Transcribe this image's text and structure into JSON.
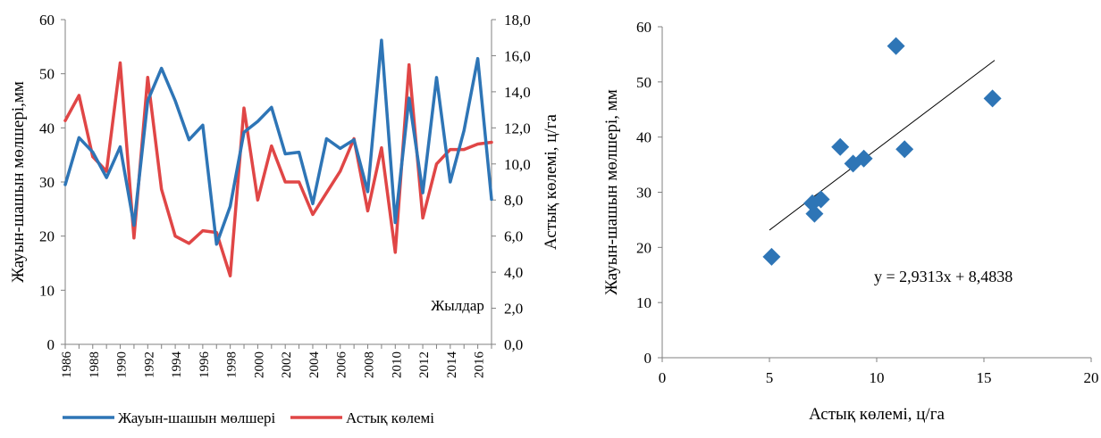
{
  "chart_data": [
    {
      "type": "line",
      "title": "",
      "xlabel": "Жылдар",
      "ylabel": "Жауын-шашын мөлшері,мм",
      "y2label": "Астық көлемі, ц/га",
      "x": [
        1986,
        1987,
        1988,
        1989,
        1990,
        1991,
        1992,
        1993,
        1994,
        1995,
        1996,
        1997,
        1998,
        1999,
        2000,
        2001,
        2002,
        2003,
        2004,
        2005,
        2006,
        2007,
        2008,
        2009,
        2010,
        2011,
        2012,
        2013,
        2014,
        2015,
        2016,
        2017
      ],
      "x_tick_labels": [
        "1986",
        "1988",
        "1990",
        "1992",
        "1994",
        "1996",
        "1998",
        "2000",
        "2002",
        "2004",
        "2006",
        "2008",
        "2010",
        "2012",
        "2014",
        "2016"
      ],
      "ylim": [
        0,
        60
      ],
      "y_ticks": [
        "0",
        "10",
        "20",
        "30",
        "40",
        "50",
        "60"
      ],
      "y2lim": [
        0,
        18
      ],
      "y2_ticks": [
        "0,0",
        "2,0",
        "4,0",
        "6,0",
        "8,0",
        "10,0",
        "12,0",
        "14,0",
        "16,0",
        "18,0"
      ],
      "grid": false,
      "legend_position": "bottom",
      "series": [
        {
          "name": "Жауын-шашын мөлшері",
          "axis": "left",
          "color": "#2E75B6",
          "values": [
            29.5,
            38.2,
            35.5,
            30.8,
            36.5,
            22.0,
            45.0,
            51.0,
            45.0,
            37.8,
            40.5,
            18.5,
            25.5,
            39.2,
            41.2,
            43.8,
            35.2,
            35.5,
            26.0,
            38.0,
            36.2,
            37.8,
            28.2,
            56.2,
            22.5,
            45.5,
            28.0,
            49.3,
            30.0,
            39.5,
            52.8,
            26.8
          ]
        },
        {
          "name": "Астық көлемі",
          "axis": "right",
          "color": "#E04646",
          "values": [
            12.4,
            13.8,
            10.4,
            9.6,
            15.6,
            5.9,
            14.8,
            8.6,
            6.0,
            5.6,
            6.3,
            6.2,
            3.8,
            13.1,
            8.0,
            11.0,
            9.0,
            9.0,
            7.2,
            8.4,
            9.6,
            11.4,
            7.4,
            10.9,
            5.1,
            15.5,
            7.0,
            10.0,
            10.8,
            10.8,
            11.1,
            11.2
          ]
        }
      ]
    },
    {
      "type": "scatter",
      "title": "",
      "xlabel": "Астық көлемі, ц/га",
      "ylabel": "Жауын-шашын мөлшері, мм",
      "xlim": [
        0,
        20
      ],
      "ylim": [
        0,
        60
      ],
      "x_ticks": [
        "0",
        "5",
        "10",
        "15",
        "20"
      ],
      "y_ticks": [
        "0",
        "10",
        "20",
        "30",
        "40",
        "50",
        "60"
      ],
      "grid": false,
      "marker_color": "#2E75B6",
      "points": [
        {
          "x": 5.1,
          "y": 18.3
        },
        {
          "x": 7.0,
          "y": 28.0
        },
        {
          "x": 7.1,
          "y": 26.1
        },
        {
          "x": 7.4,
          "y": 28.7
        },
        {
          "x": 8.3,
          "y": 38.2
        },
        {
          "x": 8.9,
          "y": 35.2
        },
        {
          "x": 9.4,
          "y": 36.1
        },
        {
          "x": 10.9,
          "y": 56.5
        },
        {
          "x": 11.3,
          "y": 37.8
        },
        {
          "x": 15.4,
          "y": 47.0
        }
      ],
      "trendline": {
        "slope": 2.9313,
        "intercept": 8.4838,
        "x_range": [
          5.0,
          15.5
        ],
        "color": "#000000"
      },
      "equation": "y = 2,9313x + 8,4838"
    }
  ]
}
